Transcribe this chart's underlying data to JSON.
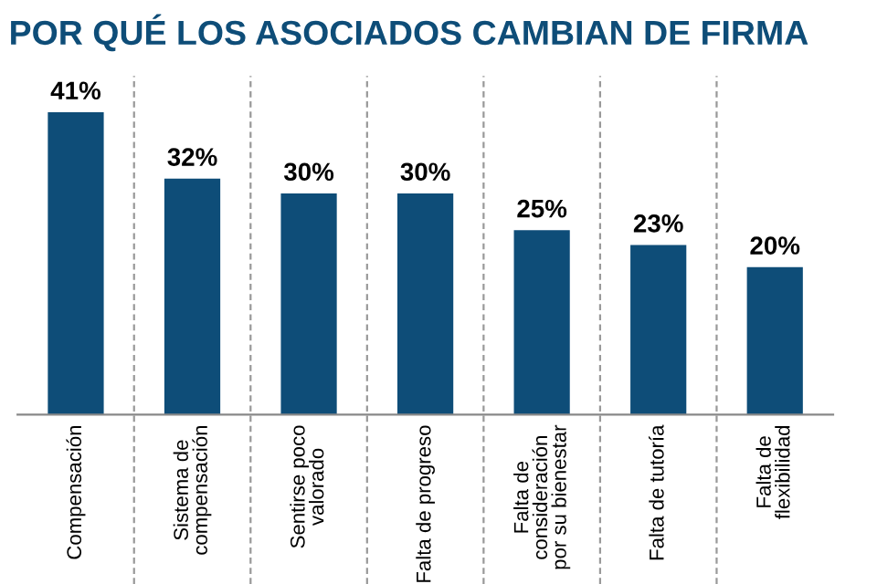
{
  "chart_data": {
    "type": "bar",
    "title": "POR QUÉ LOS ASOCIADOS CAMBIAN DE FIRMA",
    "categories": [
      "Compensación",
      "Sistema de\ncompensación",
      "Sentirse poco\nvalorado",
      "Falta de progreso",
      "Falta de\nconsideración\npor su bienestar",
      "Falta de tutoría",
      "Falta de\nflexibilidad"
    ],
    "values": [
      41,
      32,
      30,
      30,
      25,
      23,
      20
    ],
    "value_labels": [
      "41%",
      "32%",
      "30%",
      "30%",
      "25%",
      "23%",
      "20%"
    ],
    "color": "#0e4d78",
    "grid": "x"
  }
}
